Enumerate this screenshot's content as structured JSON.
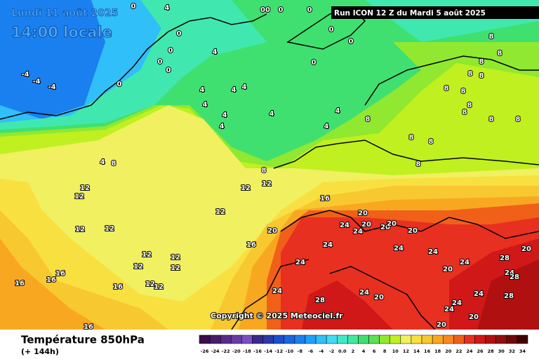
{
  "header": {
    "date": "Lundi 11 août 2025",
    "time": "14:00 locale",
    "run": "Run ICON 12 Z du Mardi 5 août 2025"
  },
  "copyright": "Copyright © 2025 Meteociel.fr",
  "footer": {
    "title": "Température 850hPa",
    "lead": "(+ 144h)"
  },
  "legend": {
    "labels": [
      "-26",
      "-24",
      "-22",
      "-20",
      "-18",
      "-16",
      "-14",
      "-12",
      "-10",
      "-8",
      "-6",
      "-4",
      "-2",
      "0.0",
      "2",
      "4",
      "6",
      "8",
      "10",
      "12",
      "14",
      "16",
      "18",
      "20",
      "22",
      "24",
      "26",
      "28",
      "30",
      "32",
      "34"
    ],
    "colors": [
      "#3b0d4a",
      "#4b1a6b",
      "#5a2a8a",
      "#6a3aa5",
      "#7a50c0",
      "#3a2a8a",
      "#2a3aa8",
      "#1c4fc8",
      "#1a66e0",
      "#1a80f0",
      "#20a0f8",
      "#30bff8",
      "#40dcf0",
      "#40e8c8",
      "#40e8a0",
      "#40e070",
      "#60e050",
      "#90e830",
      "#c0f020",
      "#f0f060",
      "#f8e040",
      "#f8c830",
      "#f8a820",
      "#f88820",
      "#f06018",
      "#e83020",
      "#d01818",
      "#b01010",
      "#901010",
      "#700808",
      "#400000"
    ]
  },
  "map": {
    "labels": [
      "4",
      "00",
      "0",
      "0",
      "0",
      "0",
      "0",
      "0",
      "0",
      "4",
      "0",
      "0",
      "0",
      "-4",
      "-4",
      "-4",
      "0",
      "4",
      "4",
      "4",
      "4",
      "4",
      "4",
      "4",
      "4",
      "4",
      "4",
      "8",
      "8",
      "12",
      "12",
      "12",
      "12",
      "16",
      "12",
      "12",
      "12",
      "16",
      "20",
      "20",
      "24",
      "20",
      "24",
      "20",
      "20",
      "20",
      "24",
      "24",
      "24",
      "12",
      "12",
      "12",
      "12",
      "16",
      "16",
      "24",
      "20",
      "24",
      "28",
      "20",
      "24",
      "28",
      "16",
      "16",
      "12",
      "12",
      "24",
      "24",
      "20",
      "28",
      "24",
      "28",
      "24",
      "24",
      "20",
      "20",
      "16",
      "8",
      "8",
      "8",
      "8",
      "8",
      "8",
      "8",
      "8",
      "8",
      "8",
      "8",
      "8",
      "8",
      "8",
      "8"
    ]
  }
}
